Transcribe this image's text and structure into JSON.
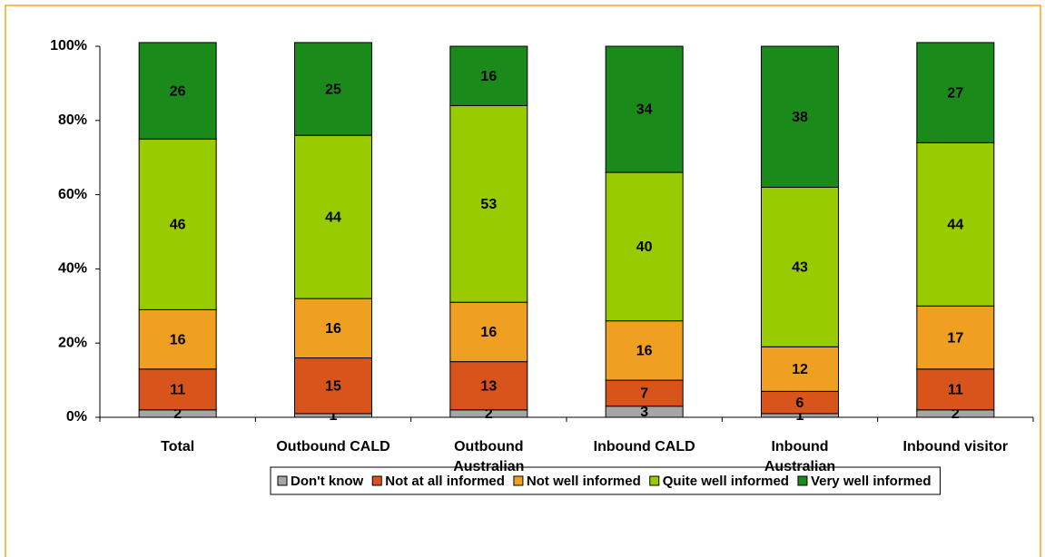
{
  "chart_data": {
    "type": "stacked_bar",
    "categories": [
      "Total",
      "Outbound CALD",
      "Outbound Australian",
      "Inbound CALD",
      "Inbound Australian",
      "Inbound visitor"
    ],
    "series": [
      {
        "name": "Don't know",
        "color": "#a6a6a6",
        "values": [
          2,
          1,
          2,
          3,
          1,
          2
        ]
      },
      {
        "name": "Not at all informed",
        "color": "#d9541a",
        "values": [
          11,
          15,
          13,
          7,
          6,
          11
        ]
      },
      {
        "name": "Not well informed",
        "color": "#f0a020",
        "values": [
          16,
          16,
          16,
          16,
          12,
          17
        ]
      },
      {
        "name": "Quite well informed",
        "color": "#99cc00",
        "values": [
          46,
          44,
          53,
          40,
          43,
          44
        ]
      },
      {
        "name": "Very well informed",
        "color": "#1a8a1a",
        "values": [
          26,
          25,
          16,
          34,
          38,
          27
        ]
      }
    ],
    "ylim": [
      0,
      100
    ],
    "yticks": [
      {
        "value": 0,
        "label": "0%"
      },
      {
        "value": 20,
        "label": "20%"
      },
      {
        "value": 40,
        "label": "40%"
      },
      {
        "value": 60,
        "label": "60%"
      },
      {
        "value": 80,
        "label": "80%"
      },
      {
        "value": 100,
        "label": "100%"
      }
    ],
    "legend": "bottom"
  }
}
